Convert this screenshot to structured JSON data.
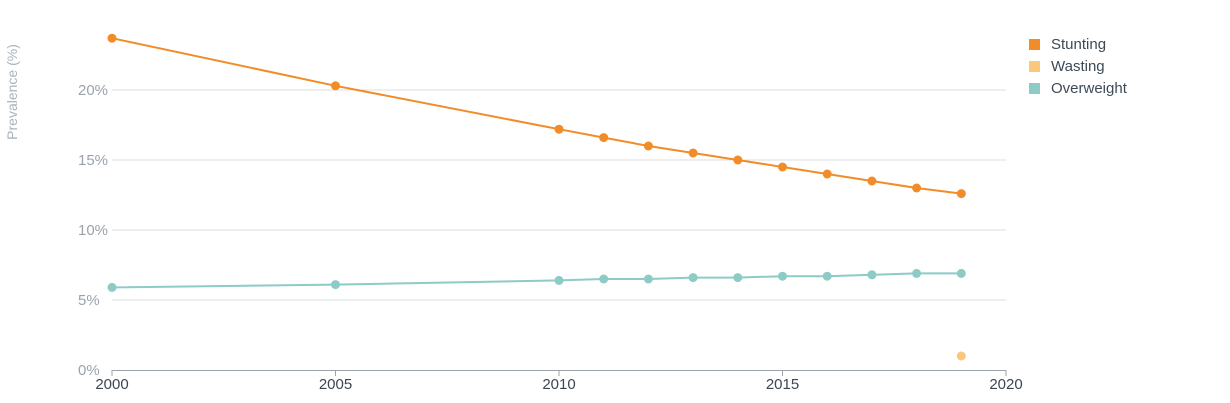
{
  "chart_data": {
    "type": "line",
    "ylabel": "Prevalence (%)",
    "xlim": [
      2000,
      2020
    ],
    "ylim": [
      0,
      25
    ],
    "xticks": [
      2000,
      2005,
      2010,
      2015,
      2020
    ],
    "yticks": [
      0,
      5,
      10,
      15,
      20
    ],
    "ytick_labels": [
      "0%",
      "5%",
      "10%",
      "15%",
      "20%"
    ],
    "grid": true,
    "legend_position": "top-right",
    "series": [
      {
        "name": "Stunting",
        "color": "#f28c28",
        "points": [
          [
            2000,
            23.7
          ],
          [
            2005,
            20.3
          ],
          [
            2010,
            17.2
          ],
          [
            2011,
            16.6
          ],
          [
            2012,
            16.0
          ],
          [
            2013,
            15.5
          ],
          [
            2014,
            15.0
          ],
          [
            2015,
            14.5
          ],
          [
            2016,
            14.0
          ],
          [
            2017,
            13.5
          ],
          [
            2018,
            13.0
          ],
          [
            2019,
            12.6
          ]
        ]
      },
      {
        "name": "Wasting",
        "color": "#fbc77d",
        "points": [
          [
            2019,
            1.0
          ]
        ]
      },
      {
        "name": "Overweight",
        "color": "#8ccbc6",
        "points": [
          [
            2000,
            5.9
          ],
          [
            2005,
            6.1
          ],
          [
            2010,
            6.4
          ],
          [
            2011,
            6.5
          ],
          [
            2012,
            6.5
          ],
          [
            2013,
            6.6
          ],
          [
            2014,
            6.6
          ],
          [
            2015,
            6.7
          ],
          [
            2016,
            6.7
          ],
          [
            2017,
            6.8
          ],
          [
            2018,
            6.9
          ],
          [
            2019,
            6.9
          ]
        ]
      }
    ]
  },
  "legend": {
    "items": [
      {
        "label": "Stunting",
        "color": "#f28c28"
      },
      {
        "label": "Wasting",
        "color": "#fbc77d"
      },
      {
        "label": "Overweight",
        "color": "#8ccbc6"
      }
    ]
  }
}
